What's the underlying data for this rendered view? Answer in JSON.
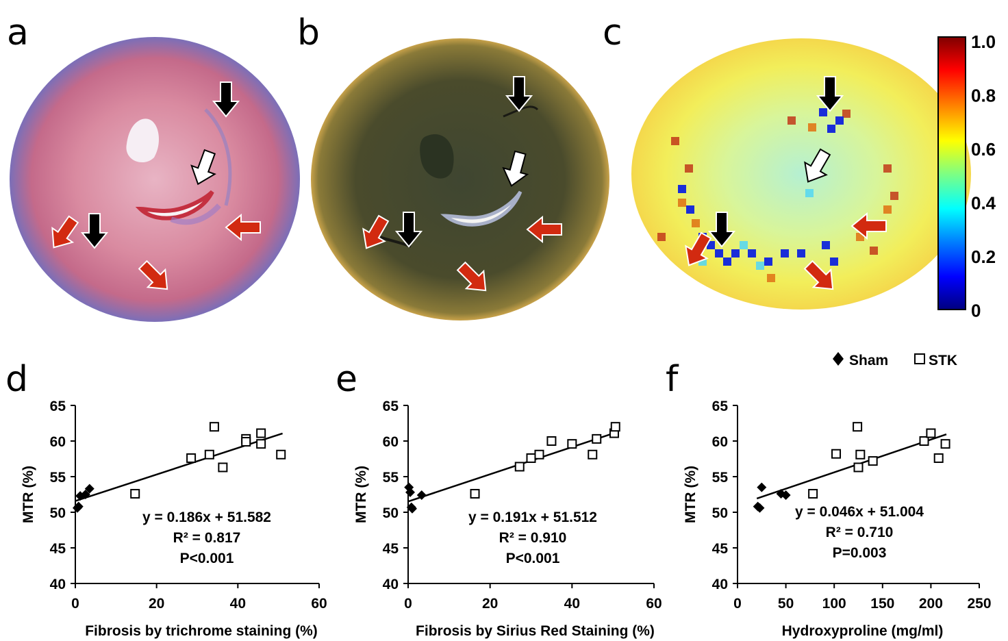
{
  "panel_letters": [
    "a",
    "b",
    "c",
    "d",
    "e",
    "f"
  ],
  "colorbar": {
    "ticks": [
      "1.0",
      "0.8",
      "0.6",
      "0.4",
      "0.2",
      "0"
    ],
    "colors": [
      "#00007f",
      "#0000ff",
      "#0080ff",
      "#00ffff",
      "#80ff80",
      "#ffff00",
      "#ff8000",
      "#ff0000",
      "#7f0000"
    ]
  },
  "legend": {
    "sham_label": "Sham",
    "stk_label": "STK"
  },
  "chart_data": [
    {
      "type": "scatter",
      "panel": "d",
      "xlabel": "Fibrosis by trichrome staining (%)",
      "ylabel": "MTR (%)",
      "xlim": [
        0,
        60
      ],
      "ylim": [
        40,
        65
      ],
      "xticks": [
        "0",
        "20",
        "40",
        "60"
      ],
      "yticks": [
        "40",
        "45",
        "50",
        "55",
        "60",
        "65"
      ],
      "series": [
        {
          "name": "Sham",
          "marker": "diamond",
          "points": [
            [
              0.5,
              50.6
            ],
            [
              0.8,
              50.8
            ],
            [
              1.2,
              52.3
            ],
            [
              2.5,
              52.5
            ],
            [
              3.5,
              53.3
            ]
          ]
        },
        {
          "name": "STK",
          "marker": "square",
          "points": [
            [
              14.7,
              52.6
            ],
            [
              28.5,
              57.6
            ],
            [
              33,
              58.1
            ],
            [
              34.2,
              62
            ],
            [
              36.3,
              56.3
            ],
            [
              42,
              60.3
            ],
            [
              42,
              59.9
            ],
            [
              45.7,
              61.1
            ],
            [
              45.7,
              59.6
            ],
            [
              50.6,
              58.1
            ]
          ]
        }
      ],
      "fit": {
        "slope": 0.186,
        "intercept": 51.582,
        "x_range": [
          0,
          51
        ]
      },
      "annotation": [
        "y = 0.186x + 51.582",
        "R² = 0.817",
        "P<0.001"
      ]
    },
    {
      "type": "scatter",
      "panel": "e",
      "xlabel": "Fibrosis by Sirius Red Staining (%)",
      "ylabel": "MTR (%)",
      "xlim": [
        0,
        60
      ],
      "ylim": [
        40,
        65
      ],
      "xticks": [
        "0",
        "20",
        "40",
        "60"
      ],
      "yticks": [
        "40",
        "45",
        "50",
        "55",
        "60",
        "65"
      ],
      "series": [
        {
          "name": "Sham",
          "marker": "diamond",
          "points": [
            [
              0.2,
              53.5
            ],
            [
              0.5,
              52.8
            ],
            [
              0.8,
              50.7
            ],
            [
              1,
              50.5
            ],
            [
              3.3,
              52.4
            ]
          ]
        },
        {
          "name": "STK",
          "marker": "square",
          "points": [
            [
              16.3,
              52.6
            ],
            [
              27.2,
              56.4
            ],
            [
              30,
              57.6
            ],
            [
              32,
              58.1
            ],
            [
              35,
              60
            ],
            [
              40,
              59.6
            ],
            [
              45,
              58.1
            ],
            [
              46,
              60.3
            ],
            [
              50.3,
              61.1
            ],
            [
              50.6,
              62
            ]
          ]
        }
      ],
      "fit": {
        "slope": 0.191,
        "intercept": 51.512,
        "x_range": [
          0,
          51
        ]
      },
      "annotation": [
        "y = 0.191x + 51.512",
        "R² = 0.910",
        "P<0.001"
      ]
    },
    {
      "type": "scatter",
      "panel": "f",
      "xlabel": "Hydroxyproline (mg/ml)",
      "ylabel": "MTR (%)",
      "xlim": [
        0,
        250
      ],
      "ylim": [
        40,
        65
      ],
      "xticks": [
        "0",
        "50",
        "100",
        "150",
        "200",
        "250"
      ],
      "yticks": [
        "40",
        "45",
        "50",
        "55",
        "60",
        "65"
      ],
      "series": [
        {
          "name": "Sham",
          "marker": "diamond",
          "points": [
            [
              21,
              50.8
            ],
            [
              23,
              50.6
            ],
            [
              25,
              53.5
            ],
            [
              45,
              52.6
            ],
            [
              50,
              52.4
            ]
          ]
        },
        {
          "name": "STK",
          "marker": "square",
          "points": [
            [
              78,
              52.6
            ],
            [
              102,
              58.2
            ],
            [
              124,
              62
            ],
            [
              125,
              56.3
            ],
            [
              127,
              58.1
            ],
            [
              140,
              57.2
            ],
            [
              193,
              60
            ],
            [
              200,
              61.1
            ],
            [
              208,
              57.6
            ],
            [
              215,
              59.6
            ]
          ]
        }
      ],
      "fit": {
        "slope": 0.046,
        "intercept": 51.004,
        "x_range": [
          20,
          216
        ]
      },
      "annotation": [
        "y = 0.046x + 51.004",
        "R² = 0.710",
        "P=0.003"
      ]
    }
  ]
}
